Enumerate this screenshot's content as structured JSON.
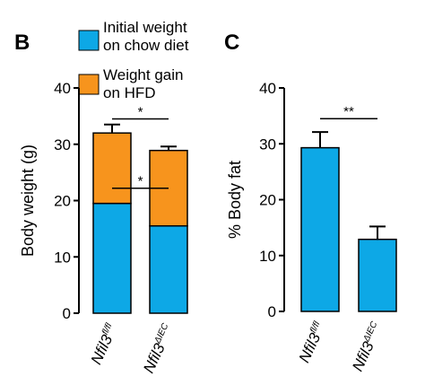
{
  "panels": {
    "left_letter": "B",
    "right_letter": "C"
  },
  "legend": {
    "items": [
      {
        "line1": "Initial weight",
        "line2": "on chow diet",
        "color": "#0da8e6"
      },
      {
        "line1": "Weight gain",
        "line2": "on HFD",
        "color": "#f7941d"
      }
    ]
  },
  "colors": {
    "blue": "#0da8e6",
    "orange": "#f7941d",
    "line": "#000000"
  },
  "chart_data": [
    {
      "type": "bar",
      "stacked": true,
      "title": "",
      "ylabel": "Body weight (g)",
      "ylim": [
        0,
        40
      ],
      "yticks": [
        "0",
        "10",
        "20",
        "30",
        "40"
      ],
      "categories": [
        {
          "base": "Nfil3",
          "sup": "fl/fl"
        },
        {
          "base": "Nfil3",
          "sup": "ΔIEC"
        }
      ],
      "series": [
        {
          "name": "Initial weight on chow diet",
          "values": [
            19.5,
            15.5
          ],
          "errors": [
            0.6,
            0.5
          ]
        },
        {
          "name": "Weight gain on HFD",
          "values": [
            12.5,
            13.4
          ],
          "errors": [
            1.5,
            0.7
          ]
        }
      ],
      "significance": [
        {
          "label": "*",
          "between": [
            0,
            1
          ],
          "y": 34.5
        },
        {
          "label": "*",
          "between": [
            0,
            1
          ],
          "y": 22.2
        }
      ]
    },
    {
      "type": "bar",
      "title": "",
      "ylabel": "% Body fat",
      "ylim": [
        0,
        40
      ],
      "yticks": [
        "0",
        "10",
        "20",
        "30",
        "40"
      ],
      "categories": [
        {
          "base": "Nfil3",
          "sup": "fl/fl"
        },
        {
          "base": "Nfil3",
          "sup": "ΔIEC"
        }
      ],
      "series": [
        {
          "values": [
            29.3,
            12.9
          ],
          "errors": [
            2.8,
            2.3
          ]
        }
      ],
      "significance": [
        {
          "label": "**",
          "between": [
            0,
            1
          ],
          "y": 34.5
        }
      ]
    }
  ]
}
